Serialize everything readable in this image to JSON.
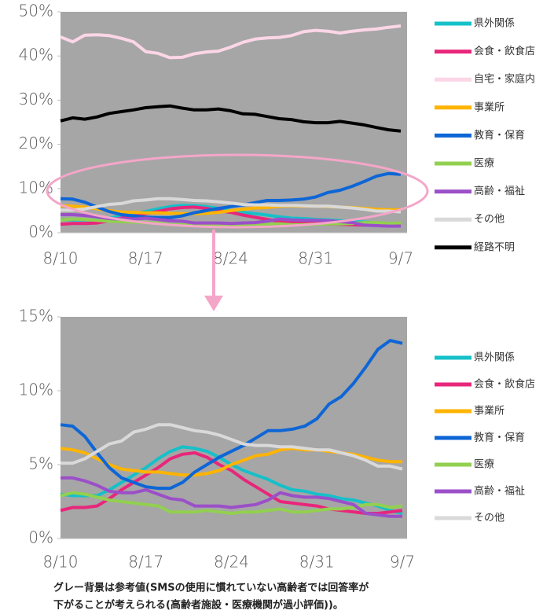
{
  "chart_data": [
    {
      "type": "line",
      "categories": [
        "8/10",
        null,
        null,
        null,
        null,
        null,
        null,
        "8/17",
        null,
        null,
        null,
        null,
        null,
        null,
        "8/24",
        null,
        null,
        null,
        null,
        null,
        null,
        "8/31",
        null,
        null,
        null,
        null,
        null,
        null,
        "9/7"
      ],
      "ylim": [
        0,
        50
      ],
      "yticks": [
        {
          "value": 0,
          "label": "0%"
        },
        {
          "value": 10,
          "label": "10%"
        },
        {
          "value": 20,
          "label": "20%"
        },
        {
          "value": 30,
          "label": "30%"
        },
        {
          "value": 40,
          "label": "40%"
        },
        {
          "value": 50,
          "label": "50%"
        }
      ],
      "background": "#a6a6a6",
      "series": [
        {
          "name": "県外関係",
          "color": "#16c0c8",
          "values": [
            3.0,
            2.9,
            2.9,
            2.9,
            3.3,
            3.8,
            4.3,
            4.8,
            5.4,
            5.9,
            6.2,
            6.1,
            5.9,
            5.5,
            5.0,
            4.6,
            4.3,
            4.0,
            3.6,
            3.3,
            3.2,
            3.0,
            2.9,
            2.7,
            2.6,
            2.4,
            2.2,
            1.9,
            1.7
          ]
        },
        {
          "name": "会食・飲食店",
          "color": "#e8267a",
          "values": [
            1.9,
            2.1,
            2.1,
            2.2,
            2.7,
            3.3,
            3.8,
            4.3,
            4.8,
            5.4,
            5.7,
            5.8,
            5.5,
            5.0,
            4.6,
            4.0,
            3.5,
            3.0,
            2.5,
            2.4,
            2.3,
            2.2,
            2.0,
            1.9,
            1.8,
            1.7,
            1.7,
            1.8,
            1.9
          ]
        },
        {
          "name": "自宅・家庭内",
          "color": "#fcd6e6",
          "values": [
            44.3,
            43.2,
            44.7,
            44.8,
            44.6,
            44.0,
            43.2,
            41.0,
            40.6,
            39.6,
            39.7,
            40.5,
            40.9,
            41.1,
            42.0,
            43.1,
            43.8,
            44.1,
            44.2,
            44.6,
            45.5,
            45.8,
            45.6,
            45.2,
            45.6,
            45.9,
            46.1,
            46.5,
            46.8
          ]
        },
        {
          "name": "事業所",
          "color": "#ffb400",
          "values": [
            6.1,
            6.0,
            5.8,
            5.4,
            5.0,
            4.7,
            4.6,
            4.5,
            4.5,
            4.4,
            4.3,
            4.3,
            4.4,
            4.6,
            5.0,
            5.3,
            5.6,
            5.7,
            6.0,
            6.1,
            6.0,
            6.0,
            5.9,
            5.8,
            5.7,
            5.5,
            5.3,
            5.2,
            5.2
          ]
        },
        {
          "name": "教育・保育",
          "color": "#0e66d6",
          "values": [
            7.7,
            7.6,
            6.9,
            5.8,
            4.8,
            4.1,
            3.8,
            3.5,
            3.4,
            3.4,
            3.8,
            4.5,
            5.0,
            5.5,
            5.9,
            6.3,
            6.8,
            7.3,
            7.3,
            7.4,
            7.6,
            8.1,
            9.1,
            9.6,
            10.5,
            11.6,
            12.8,
            13.4,
            13.2
          ]
        },
        {
          "name": "医療",
          "color": "#92d050",
          "values": [
            2.9,
            3.1,
            3.0,
            2.8,
            2.6,
            2.5,
            2.4,
            2.3,
            2.2,
            1.8,
            1.8,
            1.8,
            1.9,
            1.8,
            1.7,
            1.8,
            1.8,
            1.9,
            2.0,
            1.8,
            1.8,
            1.9,
            2.0,
            2.0,
            2.1,
            2.3,
            2.3,
            2.1,
            2.2
          ]
        },
        {
          "name": "高齢・福祉",
          "color": "#9b4fc8",
          "values": [
            4.1,
            4.1,
            3.9,
            3.6,
            3.2,
            3.1,
            3.1,
            3.3,
            3.0,
            2.7,
            2.6,
            2.2,
            2.2,
            2.2,
            2.1,
            2.2,
            2.3,
            2.6,
            3.1,
            2.9,
            2.8,
            2.8,
            2.7,
            2.5,
            2.3,
            1.7,
            1.6,
            1.5,
            1.5
          ]
        },
        {
          "name": "その他",
          "color": "#d9d9d9",
          "values": [
            5.1,
            5.1,
            5.4,
            5.9,
            6.4,
            6.6,
            7.2,
            7.4,
            7.7,
            7.7,
            7.5,
            7.3,
            7.2,
            7.0,
            6.7,
            6.4,
            6.3,
            6.3,
            6.2,
            6.2,
            6.1,
            6.0,
            6.0,
            5.8,
            5.6,
            5.3,
            4.9,
            4.9,
            4.7
          ]
        },
        {
          "name": "経路不明",
          "color": "#000000",
          "values": [
            25.3,
            26.0,
            25.7,
            26.2,
            27.0,
            27.4,
            27.8,
            28.3,
            28.5,
            28.7,
            28.2,
            27.8,
            27.8,
            28.0,
            27.6,
            26.9,
            26.8,
            26.3,
            25.8,
            25.6,
            25.1,
            24.9,
            24.9,
            25.2,
            24.8,
            24.4,
            23.8,
            23.3,
            23.0
          ]
        }
      ]
    },
    {
      "type": "line",
      "categories": [
        "8/10",
        null,
        null,
        null,
        null,
        null,
        null,
        "8/17",
        null,
        null,
        null,
        null,
        null,
        null,
        "8/24",
        null,
        null,
        null,
        null,
        null,
        null,
        "8/31",
        null,
        null,
        null,
        null,
        null,
        null,
        "9/7"
      ],
      "ylim": [
        0,
        15
      ],
      "yticks": [
        {
          "value": 0,
          "label": "0%"
        },
        {
          "value": 5,
          "label": "5%"
        },
        {
          "value": 10,
          "label": "10%"
        },
        {
          "value": 15,
          "label": "15%"
        }
      ],
      "background": "#a6a6a6",
      "annotations": [
        "グレー背景は参考値(SMSの使用に慣れていない高齢者では回答率が",
        "下がることが考えられる(高齢者施設・医療機関が過小評価))。"
      ],
      "series": [
        {
          "name": "県外関係",
          "color": "#16c0c8",
          "values": [
            3.0,
            2.9,
            2.9,
            2.9,
            3.3,
            3.8,
            4.3,
            4.8,
            5.4,
            5.9,
            6.2,
            6.1,
            5.9,
            5.5,
            5.0,
            4.6,
            4.3,
            4.0,
            3.6,
            3.3,
            3.2,
            3.0,
            2.9,
            2.7,
            2.6,
            2.4,
            2.2,
            1.9,
            1.7
          ]
        },
        {
          "name": "会食・飲食店",
          "color": "#e8267a",
          "values": [
            1.9,
            2.1,
            2.1,
            2.2,
            2.7,
            3.3,
            3.8,
            4.3,
            4.8,
            5.4,
            5.7,
            5.8,
            5.5,
            5.0,
            4.6,
            4.0,
            3.5,
            3.0,
            2.5,
            2.4,
            2.3,
            2.2,
            2.0,
            1.9,
            1.8,
            1.7,
            1.7,
            1.8,
            1.9
          ]
        },
        {
          "name": "事業所",
          "color": "#ffb400",
          "values": [
            6.1,
            6.0,
            5.8,
            5.4,
            5.0,
            4.7,
            4.6,
            4.5,
            4.5,
            4.4,
            4.3,
            4.3,
            4.4,
            4.6,
            5.0,
            5.3,
            5.6,
            5.7,
            6.0,
            6.1,
            6.0,
            6.0,
            5.9,
            5.8,
            5.7,
            5.5,
            5.3,
            5.2,
            5.2
          ]
        },
        {
          "name": "教育・保育",
          "color": "#0e66d6",
          "values": [
            7.7,
            7.6,
            6.9,
            5.8,
            4.8,
            4.1,
            3.8,
            3.5,
            3.4,
            3.4,
            3.8,
            4.5,
            5.0,
            5.5,
            5.9,
            6.3,
            6.8,
            7.3,
            7.3,
            7.4,
            7.6,
            8.1,
            9.1,
            9.6,
            10.5,
            11.6,
            12.8,
            13.4,
            13.2
          ]
        },
        {
          "name": "医療",
          "color": "#92d050",
          "values": [
            2.9,
            3.1,
            3.0,
            2.8,
            2.6,
            2.5,
            2.4,
            2.3,
            2.2,
            1.8,
            1.8,
            1.8,
            1.9,
            1.8,
            1.7,
            1.8,
            1.8,
            1.9,
            2.0,
            1.8,
            1.8,
            1.9,
            2.0,
            2.0,
            2.1,
            2.3,
            2.3,
            2.1,
            2.2
          ]
        },
        {
          "name": "高齢・福祉",
          "color": "#9b4fc8",
          "values": [
            4.1,
            4.1,
            3.9,
            3.6,
            3.2,
            3.1,
            3.1,
            3.3,
            3.0,
            2.7,
            2.6,
            2.2,
            2.2,
            2.2,
            2.1,
            2.2,
            2.3,
            2.6,
            3.1,
            2.9,
            2.8,
            2.8,
            2.7,
            2.5,
            2.3,
            1.7,
            1.6,
            1.5,
            1.5
          ]
        },
        {
          "name": "その他",
          "color": "#d9d9d9",
          "values": [
            5.1,
            5.1,
            5.4,
            5.9,
            6.4,
            6.6,
            7.2,
            7.4,
            7.7,
            7.7,
            7.5,
            7.3,
            7.2,
            7.0,
            6.7,
            6.4,
            6.3,
            6.3,
            6.2,
            6.2,
            6.1,
            6.0,
            6.0,
            5.8,
            5.6,
            5.3,
            4.9,
            4.9,
            4.7
          ]
        }
      ]
    }
  ]
}
